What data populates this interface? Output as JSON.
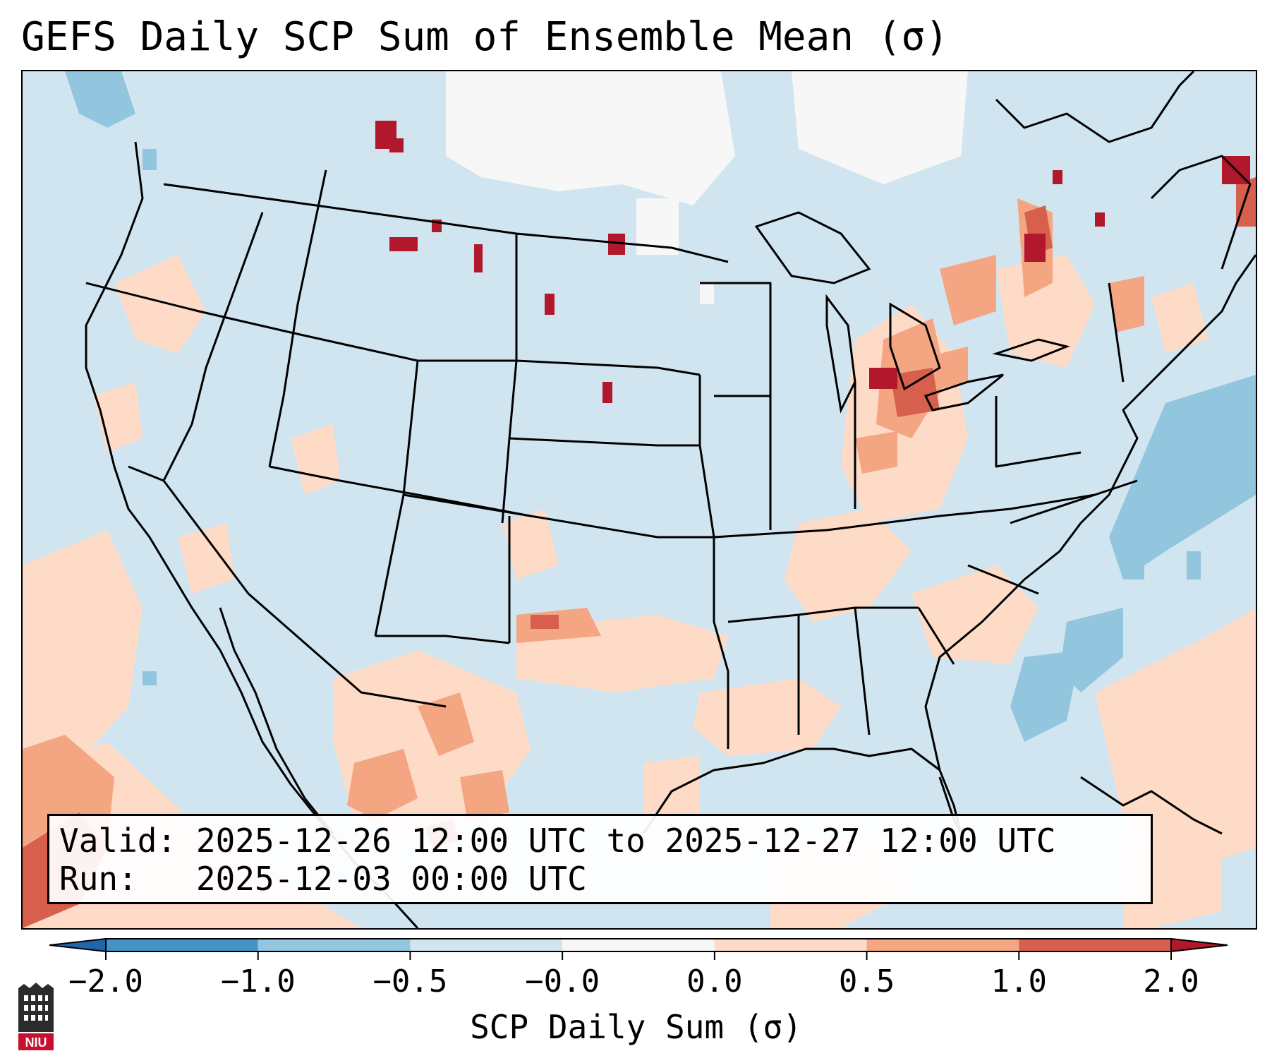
{
  "title": "GEFS Daily SCP Sum of Ensemble Mean (σ)",
  "info": {
    "valid_prefix": "Valid:",
    "valid_range": "2025-12-26 12:00 UTC to 2025-12-27 12:00 UTC",
    "run_prefix": "Run:",
    "run_time": "2025-12-03 00:00 UTC"
  },
  "colorbar": {
    "label": "SCP Daily Sum (σ)",
    "ticks": [
      "−2.0",
      "−1.0",
      "−0.5",
      "−0.0",
      "0.0",
      "0.5",
      "1.0",
      "2.0"
    ],
    "bins": [
      {
        "from": "-2.0",
        "to": "-1.0",
        "color": "#4393c3"
      },
      {
        "from": "-1.0",
        "to": "-0.5",
        "color": "#92c5de"
      },
      {
        "from": "-0.5",
        "to": "-0.0",
        "color": "#d1e5f0"
      },
      {
        "from": "-0.0",
        "to": "0.0",
        "color": "#f7f7f7"
      },
      {
        "from": "0.0",
        "to": "0.5",
        "color": "#fddbc7"
      },
      {
        "from": "0.5",
        "to": "1.0",
        "color": "#f4a582"
      },
      {
        "from": "1.0",
        "to": "2.0",
        "color": "#d6604d"
      }
    ],
    "under_color": "#2166ac",
    "over_color": "#b2182b"
  },
  "logo_text": "NIU",
  "icons": {
    "logo": "niu-logo-icon"
  }
}
